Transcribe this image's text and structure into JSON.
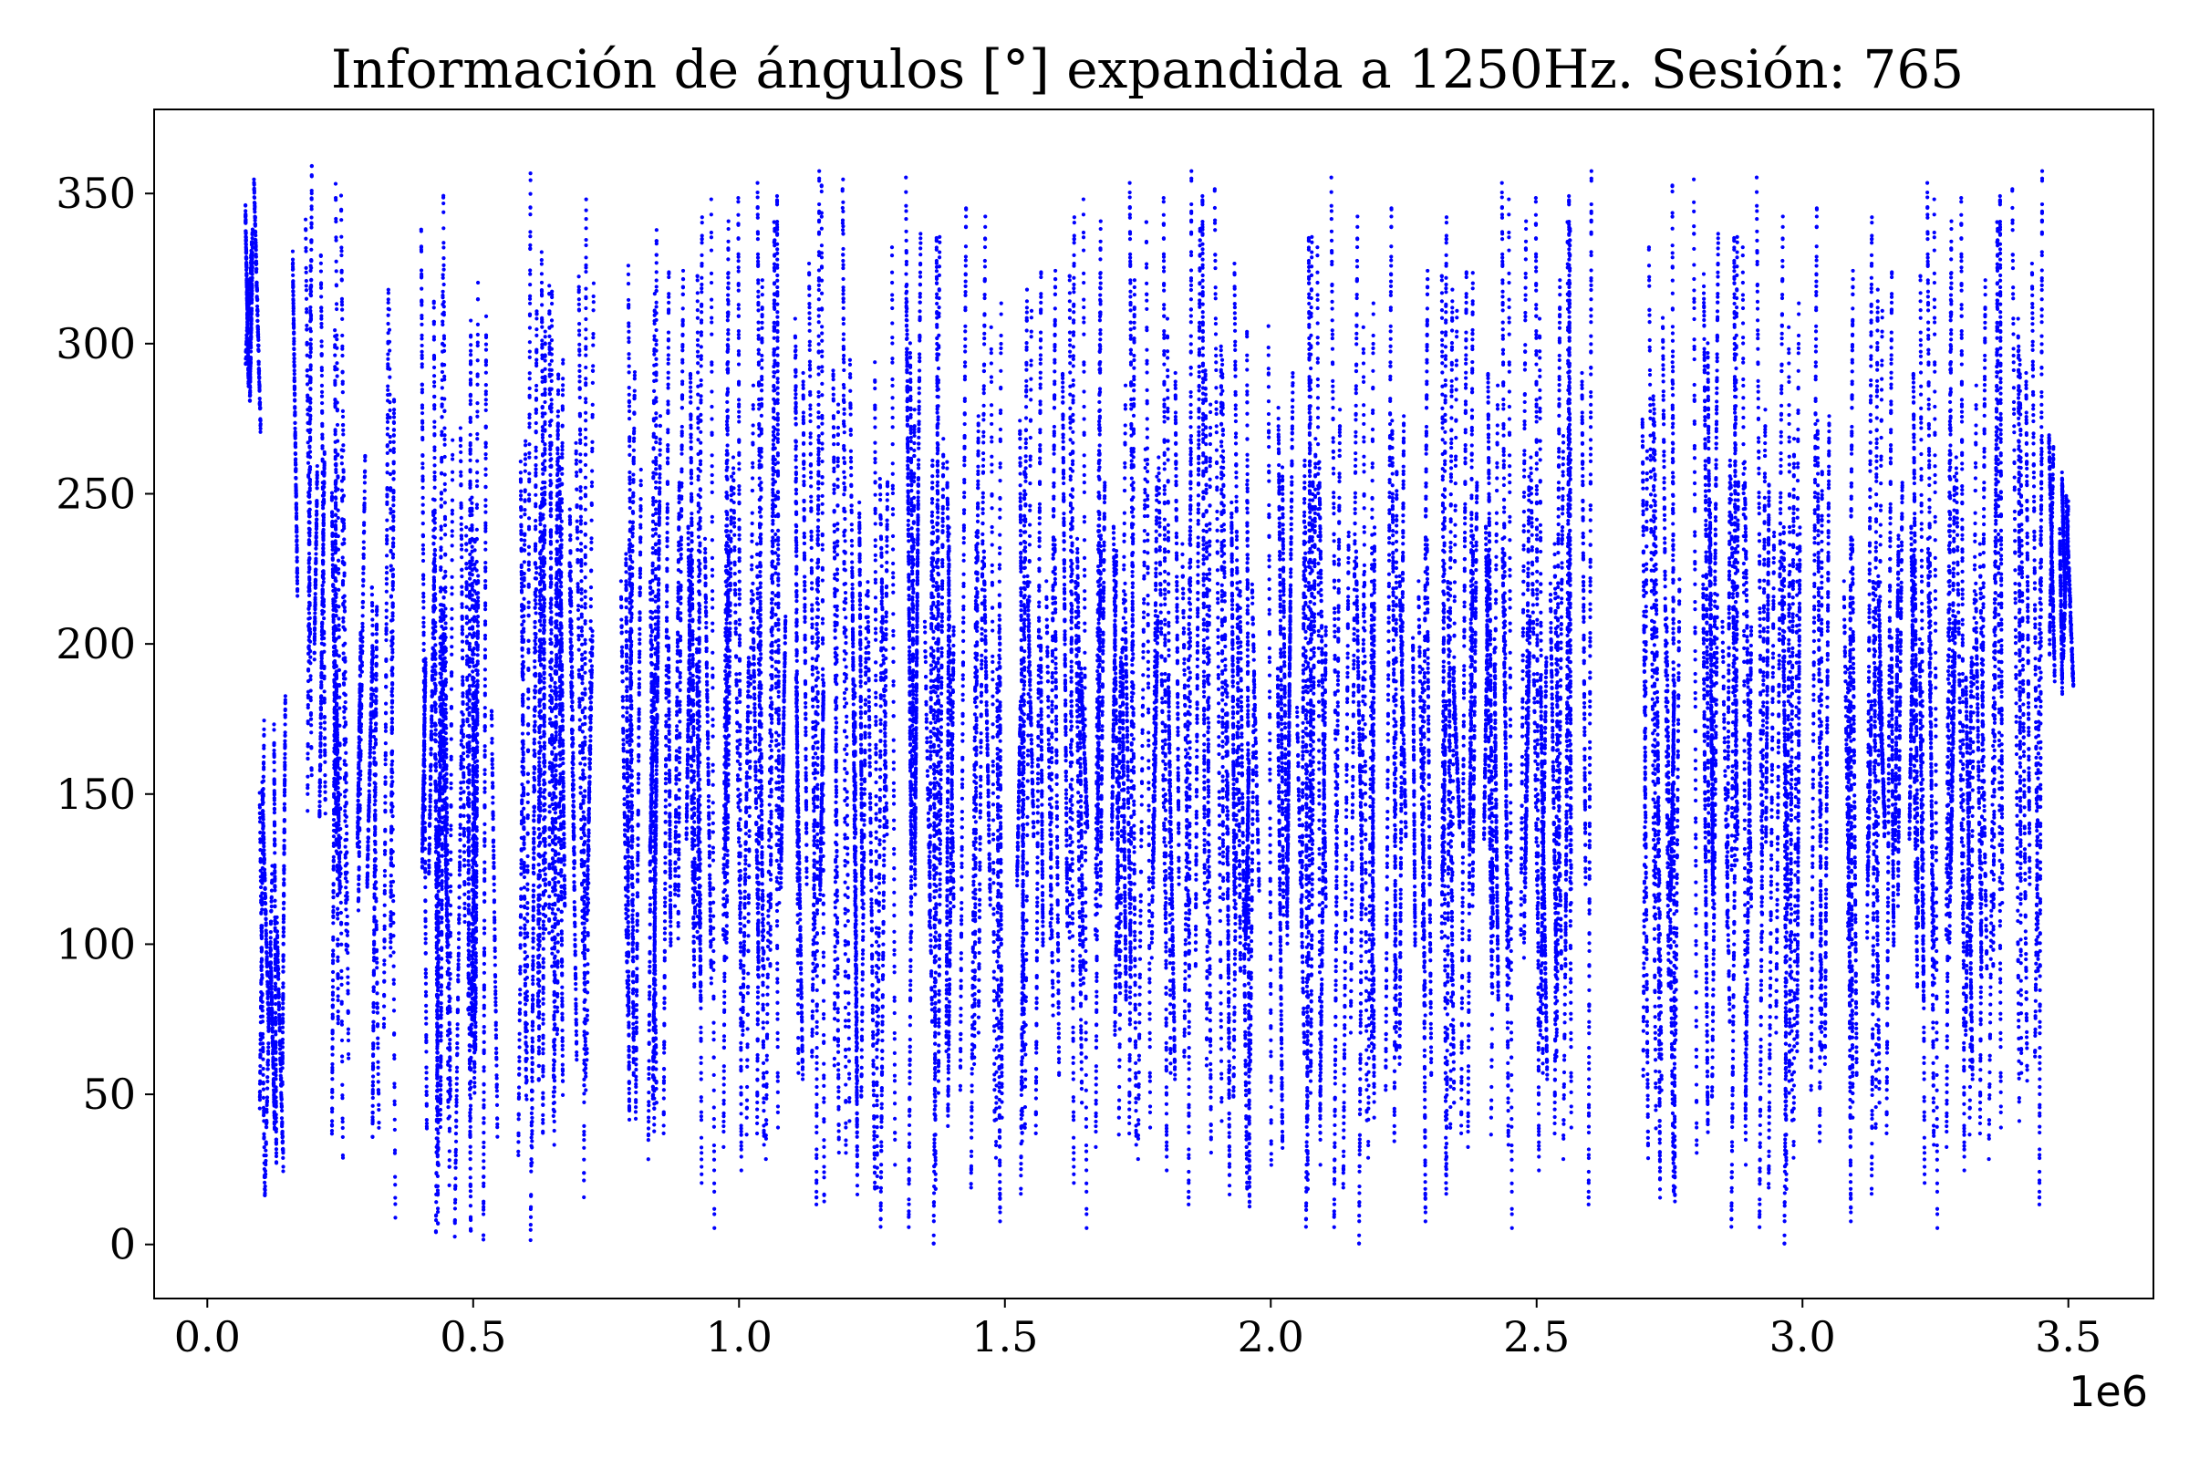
{
  "chart_data": {
    "type": "scatter",
    "title": "Información de ángulos [°] expandida a 1250Hz. Sesión: 765",
    "xlabel": "",
    "ylabel": "",
    "x_offset_label": "1e6",
    "x_ticks": [
      0.0,
      0.5,
      1.0,
      1.5,
      2.0,
      2.5,
      3.0,
      3.5
    ],
    "x_tick_labels": [
      "0.0",
      "0.5",
      "1.0",
      "1.5",
      "2.0",
      "2.5",
      "3.0",
      "3.5"
    ],
    "y_ticks": [
      0,
      50,
      100,
      150,
      200,
      250,
      300,
      350
    ],
    "y_tick_labels": [
      "0",
      "50",
      "100",
      "150",
      "200",
      "250",
      "300",
      "350"
    ],
    "xlim": [
      -0.1,
      3.66
    ],
    "ylim": [
      -18,
      378
    ],
    "x_unit_multiplier": 1000000,
    "grid": false,
    "legend": "none",
    "marker_color": "#0000ff",
    "series": [
      {
        "x_range": [
          0.07,
          3.5
        ],
        "y_range": [
          0,
          360
        ],
        "sampling_rate_hz": 1250,
        "segments": [
          {
            "x": [
              0.07,
              0.09
            ],
            "y_start": 270,
            "y_end": 358
          },
          {
            "x": [
              0.09,
              0.16
            ],
            "y_start": 0,
            "y_end": 190
          },
          {
            "x": [
              0.16,
              0.22
            ],
            "y_start": 140,
            "y_end": 360
          },
          {
            "x": [
              0.22,
              0.28
            ],
            "y_start": 0,
            "y_end": 360
          },
          {
            "x": [
              0.28,
              0.35
            ],
            "y_start": 0,
            "y_end": 340
          },
          {
            "x": [
              0.35,
              0.45
            ],
            "y_start": 0,
            "y_end": 360
          },
          {
            "x": [
              0.45,
              0.55
            ],
            "y_start": 0,
            "y_end": 320
          },
          {
            "x": [
              0.55,
              0.65
            ],
            "y_start": 0,
            "y_end": 360
          },
          {
            "x": [
              0.65,
              0.75
            ],
            "y_start": 0,
            "y_end": 360
          },
          {
            "x": [
              0.75,
              0.85
            ],
            "y_start": 0,
            "y_end": 360
          },
          {
            "x": [
              0.85,
              0.95
            ],
            "y_start": 0,
            "y_end": 360
          },
          {
            "x": [
              0.95,
              1.05
            ],
            "y_start": 0,
            "y_end": 360
          },
          {
            "x": [
              1.05,
              1.15
            ],
            "y_start": 0,
            "y_end": 360
          },
          {
            "x": [
              1.15,
              1.25
            ],
            "y_start": 0,
            "y_end": 360
          },
          {
            "x": [
              1.25,
              1.35
            ],
            "y_start": 0,
            "y_end": 360
          },
          {
            "x": [
              1.35,
              1.45
            ],
            "y_start": 0,
            "y_end": 360
          },
          {
            "x": [
              1.45,
              1.55
            ],
            "y_start": 0,
            "y_end": 360
          },
          {
            "x": [
              1.55,
              1.65
            ],
            "y_start": 0,
            "y_end": 360
          },
          {
            "x": [
              1.65,
              1.75
            ],
            "y_start": 0,
            "y_end": 360
          },
          {
            "x": [
              1.75,
              1.85
            ],
            "y_start": 0,
            "y_end": 360
          },
          {
            "x": [
              1.85,
              1.95
            ],
            "y_start": 0,
            "y_end": 360
          },
          {
            "x": [
              1.95,
              2.05
            ],
            "y_start": 0,
            "y_end": 310
          },
          {
            "x": [
              2.05,
              2.15
            ],
            "y_start": 0,
            "y_end": 360
          },
          {
            "x": [
              2.15,
              2.25
            ],
            "y_start": 0,
            "y_end": 360
          },
          {
            "x": [
              2.25,
              2.35
            ],
            "y_start": 0,
            "y_end": 360
          },
          {
            "x": [
              2.35,
              2.45
            ],
            "y_start": 0,
            "y_end": 360
          },
          {
            "x": [
              2.45,
              2.55
            ],
            "y_start": 0,
            "y_end": 360
          },
          {
            "x": [
              2.55,
              2.6
            ],
            "y_start": 0,
            "y_end": 360
          },
          {
            "x": [
              2.68,
              2.75
            ],
            "y_start": 0,
            "y_end": 340
          },
          {
            "x": [
              2.75,
              2.85
            ],
            "y_start": 0,
            "y_end": 360
          },
          {
            "x": [
              2.85,
              2.95
            ],
            "y_start": 0,
            "y_end": 360
          },
          {
            "x": [
              2.95,
              3.05
            ],
            "y_start": 0,
            "y_end": 360
          },
          {
            "x": [
              3.05,
              3.15
            ],
            "y_start": 0,
            "y_end": 360
          },
          {
            "x": [
              3.15,
              3.25
            ],
            "y_start": 0,
            "y_end": 360
          },
          {
            "x": [
              3.25,
              3.35
            ],
            "y_start": 0,
            "y_end": 360
          },
          {
            "x": [
              3.35,
              3.45
            ],
            "y_start": 0,
            "y_end": 360
          },
          {
            "x": [
              3.45,
              3.5
            ],
            "y_start": 180,
            "y_end": 290
          }
        ],
        "gaps": [
          [
            2.6,
            2.68
          ]
        ]
      }
    ]
  }
}
